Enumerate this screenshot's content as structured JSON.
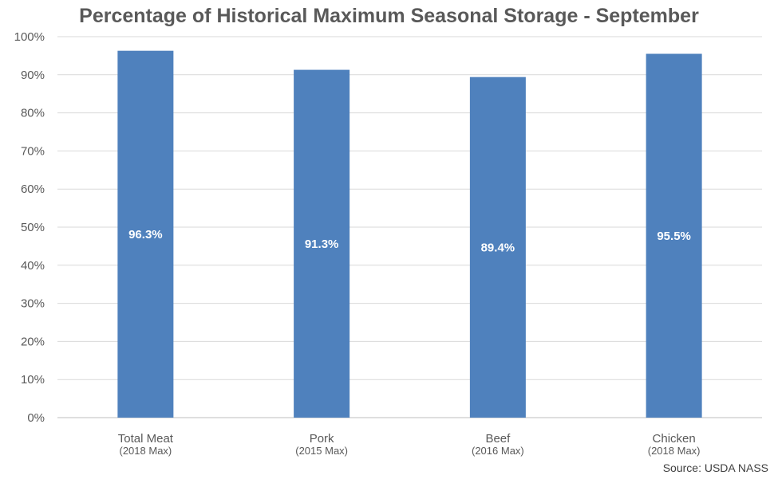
{
  "chart_data": {
    "type": "bar",
    "title": "Percentage of Historical Maximum Seasonal Storage - September",
    "categories": [
      "Total Meat",
      "Pork",
      "Beef",
      "Chicken"
    ],
    "category_sublabels": [
      "(2018 Max)",
      "(2015 Max)",
      "(2016 Max)",
      "(2018 Max)"
    ],
    "values": [
      96.3,
      91.3,
      89.4,
      95.5
    ],
    "data_labels": [
      "96.3%",
      "91.3%",
      "89.4%",
      "95.5%"
    ],
    "y_ticks": [
      "0%",
      "10%",
      "20%",
      "30%",
      "40%",
      "50%",
      "60%",
      "70%",
      "80%",
      "90%",
      "100%"
    ],
    "ylim": [
      0,
      100
    ],
    "grid": true,
    "legend": "none",
    "colors": {
      "bar": "#4f81bd",
      "grid": "#d9d9d9",
      "axis": "#bfbfbf",
      "text": "#595959",
      "label": "#ffffff"
    }
  },
  "source": "Source: USDA NASS"
}
